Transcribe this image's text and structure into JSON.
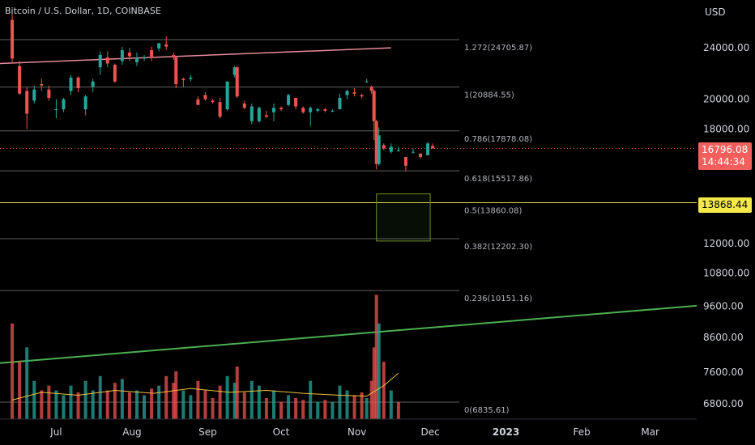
{
  "header": {
    "title": "Bitcoin / U.S. Dollar, 1D, COINBASE",
    "axis_unit": "USD"
  },
  "price_labels": {
    "current_price": "16796.08",
    "countdown": "14:44:34",
    "marker_price": "13868.44"
  },
  "colors": {
    "up": "#26a69a",
    "down": "#ef5350",
    "trend_green": "#4caf50",
    "trend_pink": "#e88a9a",
    "ma_volume": "#f0c040",
    "box_border": "#6b8e23",
    "fib_line": "#a0a0a0",
    "fib_half": "#f5e84a"
  },
  "chart_data": {
    "type": "candlestick",
    "y_axis": {
      "scale": "log",
      "ticks": [
        "24000.00",
        "20000.00",
        "18000.00",
        "13868.44",
        "12000.00",
        "10800.00",
        "9600.00",
        "8600.00",
        "7600.00",
        "6800.00"
      ],
      "range": [
        6300,
        29000
      ]
    },
    "x_axis": {
      "tick_labels": [
        "Jul",
        "Aug",
        "Sep",
        "Oct",
        "Nov",
        "Dec",
        "2023",
        "Feb",
        "Mar"
      ],
      "start": "2022-06-08",
      "end": "2023-03-20"
    },
    "fib_levels": [
      {
        "label": "1.272(24705.87)",
        "value": 24705.87
      },
      {
        "label": "1(20884.55)",
        "value": 20884.55
      },
      {
        "label": "0.786(17878.08)",
        "value": 17878.08
      },
      {
        "label": "0.618(15517.86)",
        "value": 15517.86
      },
      {
        "label": "0.5(13860.08)",
        "value": 13860.08
      },
      {
        "label": "0.382(12202.30)",
        "value": 12202.3
      },
      {
        "label": "0.236(10151.16)",
        "value": 10151.16
      },
      {
        "label": "0(6835.61)",
        "value": 6835.61
      }
    ],
    "current_price_line": 16796.08,
    "trendlines": [
      {
        "name": "green",
        "from": [
          "2022-06-08",
          7850
        ],
        "to": [
          "2023-03-20",
          9620
        ]
      },
      {
        "name": "pink",
        "from": [
          "2022-06-08",
          22700
        ],
        "to": [
          "2022-11-15",
          24000
        ]
      }
    ],
    "box": {
      "from": [
        "2022-11-09",
        12100
      ],
      "to": [
        "2022-12-01",
        14300
      ]
    },
    "candles": [
      [
        "2022-06-13",
        26500,
        27200,
        22700,
        23100
      ],
      [
        "2022-06-16",
        22500,
        22900,
        20300,
        20400
      ],
      [
        "2022-06-19",
        20600,
        20900,
        18000,
        19000
      ],
      [
        "2022-06-22",
        19900,
        21000,
        19700,
        20700
      ],
      [
        "2022-06-25",
        21100,
        21500,
        20600,
        21000
      ],
      [
        "2022-06-28",
        20700,
        21000,
        19900,
        20100
      ],
      [
        "2022-07-01",
        19300,
        20000,
        18700,
        19300
      ],
      [
        "2022-07-04",
        19300,
        20100,
        19100,
        20000
      ],
      [
        "2022-07-07",
        20600,
        21800,
        20300,
        21600
      ],
      [
        "2022-07-10",
        21600,
        21700,
        20500,
        20800
      ],
      [
        "2022-07-13",
        19300,
        20300,
        18900,
        20200
      ],
      [
        "2022-07-16",
        20900,
        21500,
        20500,
        21300
      ],
      [
        "2022-07-19",
        22400,
        23700,
        21800,
        23400
      ],
      [
        "2022-07-22",
        23200,
        23700,
        22400,
        22700
      ],
      [
        "2022-07-25",
        22600,
        22700,
        21200,
        21300
      ],
      [
        "2022-07-28",
        22900,
        24100,
        22600,
        23800
      ],
      [
        "2022-07-31",
        23600,
        24000,
        22900,
        23300
      ],
      [
        "2022-08-03",
        22800,
        23600,
        22500,
        23200
      ],
      [
        "2022-08-06",
        23100,
        23400,
        22900,
        23200
      ],
      [
        "2022-08-09",
        23800,
        24100,
        22900,
        23150
      ],
      [
        "2022-08-12",
        23950,
        24400,
        23700,
        24400
      ],
      [
        "2022-08-15",
        24300,
        25000,
        23800,
        24100
      ],
      [
        "2022-08-18",
        23400,
        23600,
        23000,
        23200
      ],
      [
        "2022-08-19",
        23200,
        23200,
        20800,
        21100
      ],
      [
        "2022-08-22",
        21500,
        21600,
        20900,
        21400
      ],
      [
        "2022-08-25",
        21500,
        21800,
        21300,
        21600
      ],
      [
        "2022-08-28",
        20000,
        20200,
        19600,
        19600
      ],
      [
        "2022-08-31",
        20300,
        20500,
        19900,
        20000
      ],
      [
        "2022-09-03",
        19900,
        20000,
        19700,
        19800
      ],
      [
        "2022-09-06",
        19800,
        20100,
        18700,
        18800
      ],
      [
        "2022-09-09",
        19300,
        21300,
        19200,
        21300
      ],
      [
        "2022-09-12",
        21800,
        22500,
        21600,
        22400
      ],
      [
        "2022-09-13",
        22400,
        22500,
        20100,
        20200
      ],
      [
        "2022-09-16",
        19700,
        19900,
        19300,
        19400
      ],
      [
        "2022-09-19",
        18500,
        19700,
        18300,
        19500
      ],
      [
        "2022-09-22",
        18500,
        19500,
        18400,
        19400
      ],
      [
        "2022-09-25",
        18900,
        19200,
        18700,
        18800
      ],
      [
        "2022-09-28",
        19100,
        19700,
        18500,
        19400
      ],
      [
        "2022-10-01",
        19400,
        19500,
        19200,
        19300
      ],
      [
        "2022-10-04",
        19600,
        20400,
        19500,
        20300
      ],
      [
        "2022-10-07",
        20100,
        20100,
        19300,
        19500
      ],
      [
        "2022-10-10",
        19400,
        19500,
        19000,
        19100
      ],
      [
        "2022-10-13",
        19100,
        19500,
        18200,
        19400
      ],
      [
        "2022-10-16",
        19200,
        19400,
        19100,
        19300
      ],
      [
        "2022-10-19",
        19300,
        19400,
        19100,
        19200
      ],
      [
        "2022-10-22",
        19200,
        19300,
        19100,
        19200
      ],
      [
        "2022-10-25",
        19300,
        20400,
        19300,
        20100
      ],
      [
        "2022-10-28",
        20300,
        20700,
        20000,
        20600
      ],
      [
        "2022-10-31",
        20500,
        20800,
        20200,
        20400
      ],
      [
        "2022-11-03",
        20300,
        20400,
        20050,
        20200
      ],
      [
        "2022-11-05",
        21300,
        21500,
        21200,
        21300
      ],
      [
        "2022-11-07",
        20900,
        21000,
        20400,
        20600
      ],
      [
        "2022-11-08",
        20600,
        20700,
        17300,
        18500
      ],
      [
        "2022-11-09",
        18500,
        18600,
        15600,
        15900
      ],
      [
        "2022-11-10",
        15900,
        18100,
        15800,
        17600
      ],
      [
        "2022-11-12",
        17000,
        17100,
        16700,
        16800
      ],
      [
        "2022-11-15",
        16600,
        17100,
        16500,
        16900
      ],
      [
        "2022-11-18",
        16700,
        16900,
        16600,
        16700
      ],
      [
        "2022-11-21",
        16300,
        16300,
        15500,
        15800
      ],
      [
        "2022-11-24",
        16600,
        16800,
        16500,
        16600
      ],
      [
        "2022-11-27",
        16500,
        16500,
        16200,
        16300
      ],
      [
        "2022-11-30",
        16400,
        17200,
        16400,
        17100
      ],
      [
        "2022-12-02",
        16950,
        17100,
        16800,
        16796
      ]
    ],
    "volume": {
      "scale": [
        0,
        110
      ],
      "bars": [
        [
          "2022-06-13",
          100,
          0
        ],
        [
          "2022-06-16",
          60,
          0
        ],
        [
          "2022-06-19",
          75,
          1
        ],
        [
          "2022-06-22",
          40,
          1
        ],
        [
          "2022-06-25",
          30,
          0
        ],
        [
          "2022-06-28",
          35,
          0
        ],
        [
          "2022-07-01",
          30,
          1
        ],
        [
          "2022-07-04",
          25,
          1
        ],
        [
          "2022-07-07",
          35,
          1
        ],
        [
          "2022-07-10",
          28,
          0
        ],
        [
          "2022-07-13",
          40,
          1
        ],
        [
          "2022-07-16",
          30,
          1
        ],
        [
          "2022-07-19",
          45,
          1
        ],
        [
          "2022-07-22",
          30,
          0
        ],
        [
          "2022-07-25",
          38,
          0
        ],
        [
          "2022-07-28",
          42,
          1
        ],
        [
          "2022-07-31",
          28,
          0
        ],
        [
          "2022-08-03",
          30,
          1
        ],
        [
          "2022-08-06",
          25,
          1
        ],
        [
          "2022-08-09",
          32,
          0
        ],
        [
          "2022-08-12",
          35,
          1
        ],
        [
          "2022-08-15",
          45,
          0
        ],
        [
          "2022-08-18",
          38,
          0
        ],
        [
          "2022-08-19",
          50,
          0
        ],
        [
          "2022-08-22",
          30,
          1
        ],
        [
          "2022-08-25",
          25,
          1
        ],
        [
          "2022-08-28",
          40,
          0
        ],
        [
          "2022-08-31",
          30,
          0
        ],
        [
          "2022-09-03",
          22,
          0
        ],
        [
          "2022-09-06",
          35,
          0
        ],
        [
          "2022-09-09",
          45,
          1
        ],
        [
          "2022-09-12",
          38,
          1
        ],
        [
          "2022-09-13",
          55,
          0
        ],
        [
          "2022-09-16",
          28,
          0
        ],
        [
          "2022-09-19",
          40,
          1
        ],
        [
          "2022-09-22",
          35,
          1
        ],
        [
          "2022-09-25",
          22,
          0
        ],
        [
          "2022-09-28",
          30,
          1
        ],
        [
          "2022-10-01",
          18,
          0
        ],
        [
          "2022-10-04",
          25,
          1
        ],
        [
          "2022-10-07",
          22,
          0
        ],
        [
          "2022-10-10",
          20,
          0
        ],
        [
          "2022-10-13",
          40,
          1
        ],
        [
          "2022-10-16",
          18,
          1
        ],
        [
          "2022-10-19",
          20,
          0
        ],
        [
          "2022-10-22",
          18,
          1
        ],
        [
          "2022-10-25",
          35,
          1
        ],
        [
          "2022-10-28",
          30,
          1
        ],
        [
          "2022-10-31",
          25,
          0
        ],
        [
          "2022-11-03",
          28,
          0
        ],
        [
          "2022-11-05",
          22,
          1
        ],
        [
          "2022-11-07",
          40,
          0
        ],
        [
          "2022-11-08",
          75,
          0
        ],
        [
          "2022-11-09",
          130,
          0
        ],
        [
          "2022-11-10",
          100,
          1
        ],
        [
          "2022-11-12",
          60,
          0
        ],
        [
          "2022-11-15",
          30,
          1
        ],
        [
          "2022-11-18",
          18,
          0
        ]
      ],
      "ma": [
        [
          "2022-06-13",
          20
        ],
        [
          "2022-06-25",
          28
        ],
        [
          "2022-07-10",
          25
        ],
        [
          "2022-07-25",
          30
        ],
        [
          "2022-08-10",
          27
        ],
        [
          "2022-08-25",
          32
        ],
        [
          "2022-09-10",
          28
        ],
        [
          "2022-09-25",
          30
        ],
        [
          "2022-10-10",
          27
        ],
        [
          "2022-10-25",
          25
        ],
        [
          "2022-11-05",
          24
        ],
        [
          "2022-11-12",
          35
        ],
        [
          "2022-11-18",
          48
        ]
      ]
    }
  }
}
